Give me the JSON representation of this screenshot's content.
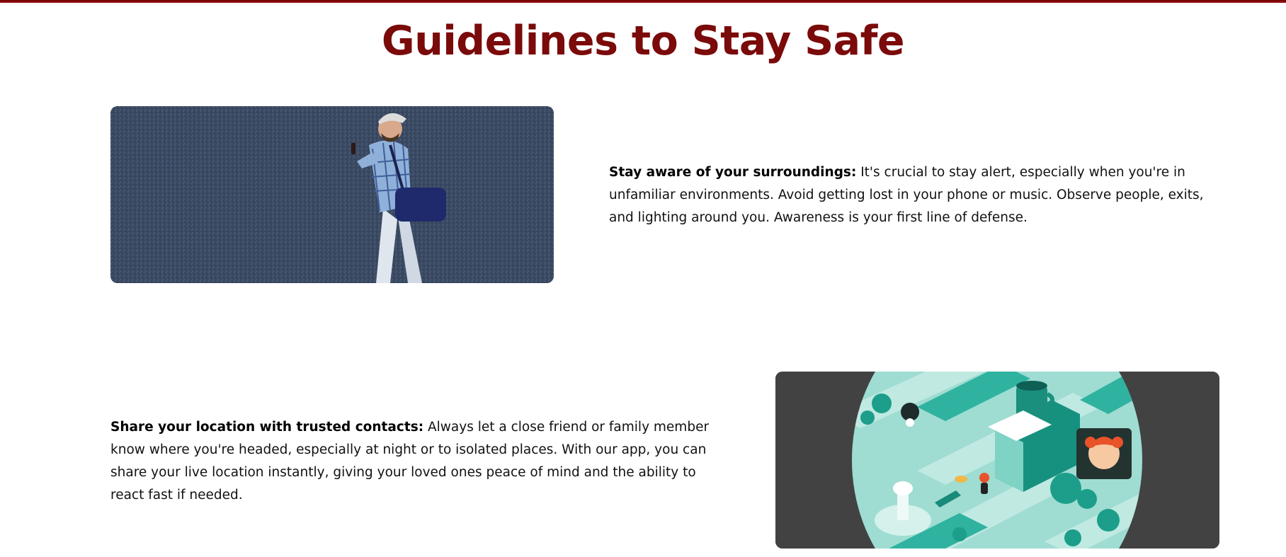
{
  "header": {
    "title": "Guidelines to Stay Safe",
    "accent_color": "#7b0a0a"
  },
  "guidelines": [
    {
      "heading": "Stay aware of your surroundings:",
      "body": " It's crucial to stay alert, especially when you're in unfamiliar environments. Avoid getting lost in your phone or music. Observe people, exits, and lighting around you. Awareness is your first line of defense.",
      "image_icon": "man-walking-with-phone-photo"
    },
    {
      "heading": "Share your location with trusted contacts:",
      "body": " Always let a close friend or family member know where you're headed, especially at night or to isolated places. With our app, you can share your live location instantly, giving your loved ones peace of mind and the ability to react fast if needed.",
      "image_icon": "city-map-location-illustration"
    }
  ]
}
